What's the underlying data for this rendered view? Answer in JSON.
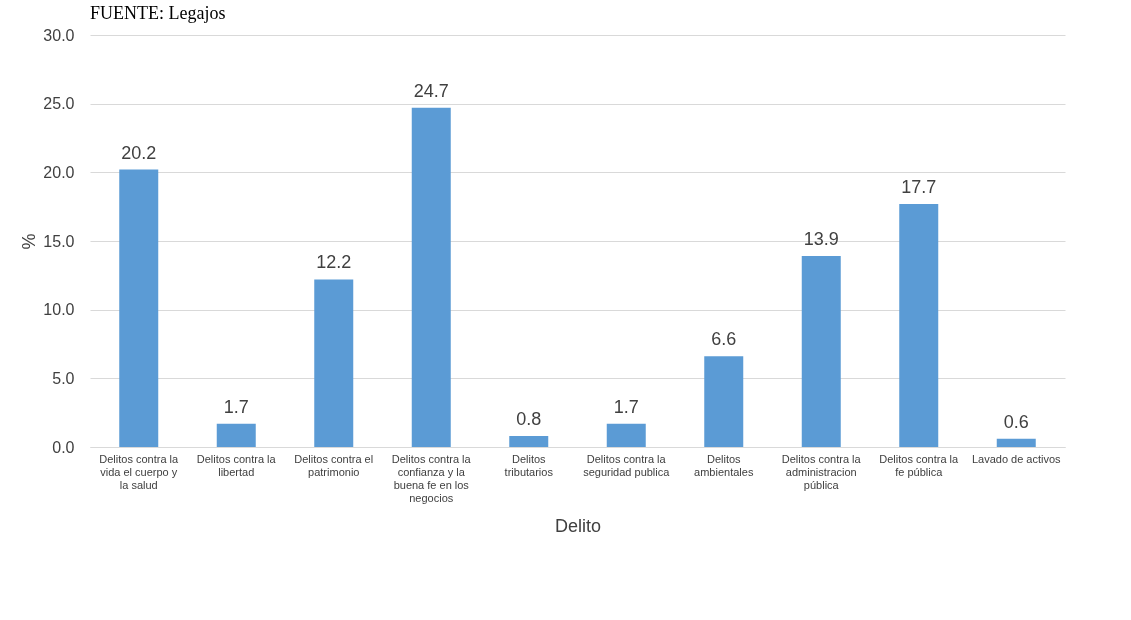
{
  "chart_data": {
    "type": "bar",
    "xlabel": "Delito",
    "ylabel": "%",
    "categories": [
      "Delitos contra la vida el cuerpo y la salud",
      "Delitos contra la libertad",
      "Delitos contra el patrimonio",
      "Delitos contra la confianza y la buena fe en los negocios",
      "Delitos tributarios",
      "Delitos contra la seguridad publica",
      "Delitos ambientales",
      "Delitos contra la administracion pública",
      "Delitos contra la fe pública",
      "Lavado de activos"
    ],
    "values": [
      20.2,
      1.7,
      12.2,
      24.7,
      0.8,
      1.7,
      6.6,
      13.9,
      17.7,
      0.6
    ],
    "color": "#5b9bd5",
    "ylim": [
      0,
      30
    ],
    "yticks": [
      {
        "value": 0,
        "label": "0.0"
      },
      {
        "value": 5,
        "label": "5.0"
      },
      {
        "value": 10,
        "label": "10.0"
      },
      {
        "value": 15,
        "label": "15.0"
      },
      {
        "value": 20,
        "label": "20.0"
      },
      {
        "value": 25,
        "label": "25.0"
      },
      {
        "value": 30,
        "label": "30.0"
      }
    ],
    "grid": "y",
    "data_labels": true,
    "annotations": [
      "FUENTE: Legajos"
    ]
  }
}
